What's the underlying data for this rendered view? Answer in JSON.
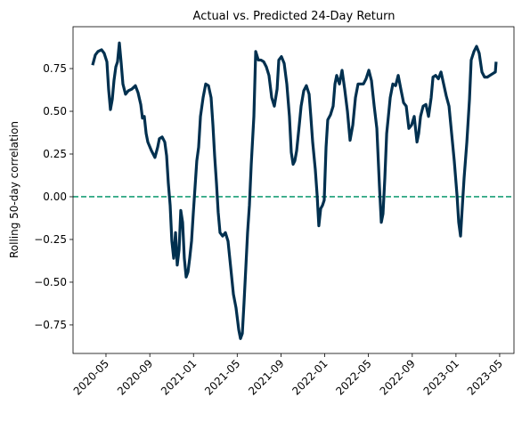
{
  "chart_data": {
    "type": "line",
    "title": "Actual vs. Predicted 24-Day Return",
    "y_label": "Rolling 50-day correlation",
    "xlim": [
      2020.082,
      2023.442
    ],
    "ylim": [
      -0.917,
      0.995
    ],
    "xticks": [
      {
        "value": 2020.333,
        "label": "2020-05"
      },
      {
        "value": 2020.667,
        "label": "2020-09"
      },
      {
        "value": 2021.0,
        "label": "2021-01"
      },
      {
        "value": 2021.333,
        "label": "2021-05"
      },
      {
        "value": 2021.667,
        "label": "2021-09"
      },
      {
        "value": 2022.0,
        "label": "2022-01"
      },
      {
        "value": 2022.333,
        "label": "2022-05"
      },
      {
        "value": 2022.667,
        "label": "2022-09"
      },
      {
        "value": 2023.0,
        "label": "2023-01"
      },
      {
        "value": 2023.333,
        "label": "2023-05"
      }
    ],
    "yticks": [
      {
        "value": -0.75,
        "label": "−0.75"
      },
      {
        "value": -0.5,
        "label": "−0.50"
      },
      {
        "value": -0.25,
        "label": "−0.25"
      },
      {
        "value": 0,
        "label": "0.00"
      },
      0.25,
      {
        "value": 0.5,
        "label": "0.50"
      },
      0.75
    ],
    "hline": {
      "value": 0,
      "color": "#1a9e77"
    },
    "x": [
      2020.231,
      2020.252,
      2020.272,
      2020.299,
      2020.319,
      2020.34,
      2020.353,
      2020.367,
      2020.381,
      2020.394,
      2020.408,
      2020.421,
      2020.435,
      2020.448,
      2020.462,
      2020.482,
      2020.503,
      2020.53,
      2020.557,
      2020.577,
      2020.598,
      2020.611,
      2020.625,
      2020.639,
      2020.652,
      2020.679,
      2020.706,
      2020.727,
      2020.74,
      2020.761,
      2020.781,
      2020.795,
      2020.808,
      2020.822,
      2020.835,
      2020.849,
      2020.863,
      2020.876,
      2020.89,
      2020.903,
      2020.917,
      2020.93,
      2020.944,
      2020.958,
      2020.971,
      2020.985,
      2020.998,
      2021.012,
      2021.025,
      2021.039,
      2021.053,
      2021.073,
      2021.093,
      2021.114,
      2021.134,
      2021.148,
      2021.161,
      2021.175,
      2021.188,
      2021.202,
      2021.222,
      2021.243,
      2021.263,
      2021.283,
      2021.304,
      2021.324,
      2021.345,
      2021.358,
      2021.372,
      2021.385,
      2021.399,
      2021.412,
      2021.426,
      2021.44,
      2021.46,
      2021.474,
      2021.494,
      2021.514,
      2021.535,
      2021.555,
      2021.575,
      2021.596,
      2021.616,
      2021.637,
      2021.65,
      2021.67,
      2021.691,
      2021.711,
      2021.731,
      2021.745,
      2021.759,
      2021.772,
      2021.786,
      2021.806,
      2021.82,
      2021.84,
      2021.86,
      2021.881,
      2021.894,
      2021.908,
      2021.928,
      2021.942,
      2021.955,
      2021.969,
      2021.983,
      2021.996,
      2022.01,
      2022.023,
      2022.044,
      2022.064,
      2022.078,
      2022.091,
      2022.112,
      2022.132,
      2022.152,
      2022.173,
      2022.193,
      2022.214,
      2022.234,
      2022.254,
      2022.275,
      2022.295,
      2022.315,
      2022.336,
      2022.356,
      2022.377,
      2022.397,
      2022.417,
      2022.431,
      2022.444,
      2022.458,
      2022.472,
      2022.485,
      2022.499,
      2022.519,
      2022.54,
      2022.56,
      2022.58,
      2022.601,
      2022.621,
      2022.641,
      2022.662,
      2022.682,
      2022.703,
      2022.716,
      2022.73,
      2022.75,
      2022.771,
      2022.791,
      2022.811,
      2022.825,
      2022.845,
      2022.866,
      2022.886,
      2022.906,
      2022.926,
      2022.947,
      2022.967,
      2022.987,
      2023.008,
      2023.021,
      2023.035,
      2023.049,
      2023.062,
      2023.083,
      2023.103,
      2023.116,
      2023.137,
      2023.157,
      2023.177,
      2023.198,
      2023.218,
      2023.239,
      2023.259,
      2023.279,
      2023.3,
      2023.306
    ],
    "series": [
      {
        "color": "#00304f",
        "values": [
          0.77,
          0.83,
          0.85,
          0.86,
          0.84,
          0.79,
          0.63,
          0.51,
          0.57,
          0.68,
          0.76,
          0.79,
          0.9,
          0.79,
          0.66,
          0.6,
          0.62,
          0.63,
          0.65,
          0.61,
          0.54,
          0.46,
          0.47,
          0.37,
          0.32,
          0.27,
          0.23,
          0.29,
          0.34,
          0.35,
          0.32,
          0.24,
          0.08,
          -0.05,
          -0.26,
          -0.36,
          -0.21,
          -0.4,
          -0.31,
          -0.08,
          -0.15,
          -0.36,
          -0.47,
          -0.44,
          -0.36,
          -0.26,
          -0.1,
          0.06,
          0.21,
          0.29,
          0.47,
          0.58,
          0.66,
          0.65,
          0.58,
          0.42,
          0.24,
          0.08,
          -0.09,
          -0.21,
          -0.23,
          -0.21,
          -0.26,
          -0.41,
          -0.57,
          -0.65,
          -0.78,
          -0.83,
          -0.8,
          -0.62,
          -0.41,
          -0.21,
          -0.05,
          0.19,
          0.47,
          0.85,
          0.8,
          0.8,
          0.79,
          0.76,
          0.71,
          0.58,
          0.53,
          0.63,
          0.8,
          0.82,
          0.78,
          0.66,
          0.47,
          0.26,
          0.19,
          0.21,
          0.27,
          0.42,
          0.53,
          0.62,
          0.65,
          0.6,
          0.47,
          0.32,
          0.16,
          0.01,
          -0.17,
          -0.07,
          -0.05,
          -0.02,
          0.29,
          0.45,
          0.48,
          0.53,
          0.66,
          0.71,
          0.66,
          0.74,
          0.63,
          0.5,
          0.33,
          0.42,
          0.58,
          0.66,
          0.66,
          0.66,
          0.69,
          0.74,
          0.68,
          0.53,
          0.4,
          0.06,
          -0.15,
          -0.1,
          0.11,
          0.37,
          0.47,
          0.58,
          0.66,
          0.65,
          0.71,
          0.63,
          0.55,
          0.53,
          0.4,
          0.42,
          0.47,
          0.32,
          0.37,
          0.47,
          0.53,
          0.54,
          0.47,
          0.58,
          0.7,
          0.71,
          0.69,
          0.73,
          0.66,
          0.59,
          0.53,
          0.37,
          0.21,
          0.01,
          -0.15,
          -0.23,
          -0.05,
          0.11,
          0.32,
          0.57,
          0.8,
          0.85,
          0.88,
          0.84,
          0.73,
          0.7,
          0.7,
          0.71,
          0.72,
          0.73,
          0.79
        ]
      }
    ]
  }
}
